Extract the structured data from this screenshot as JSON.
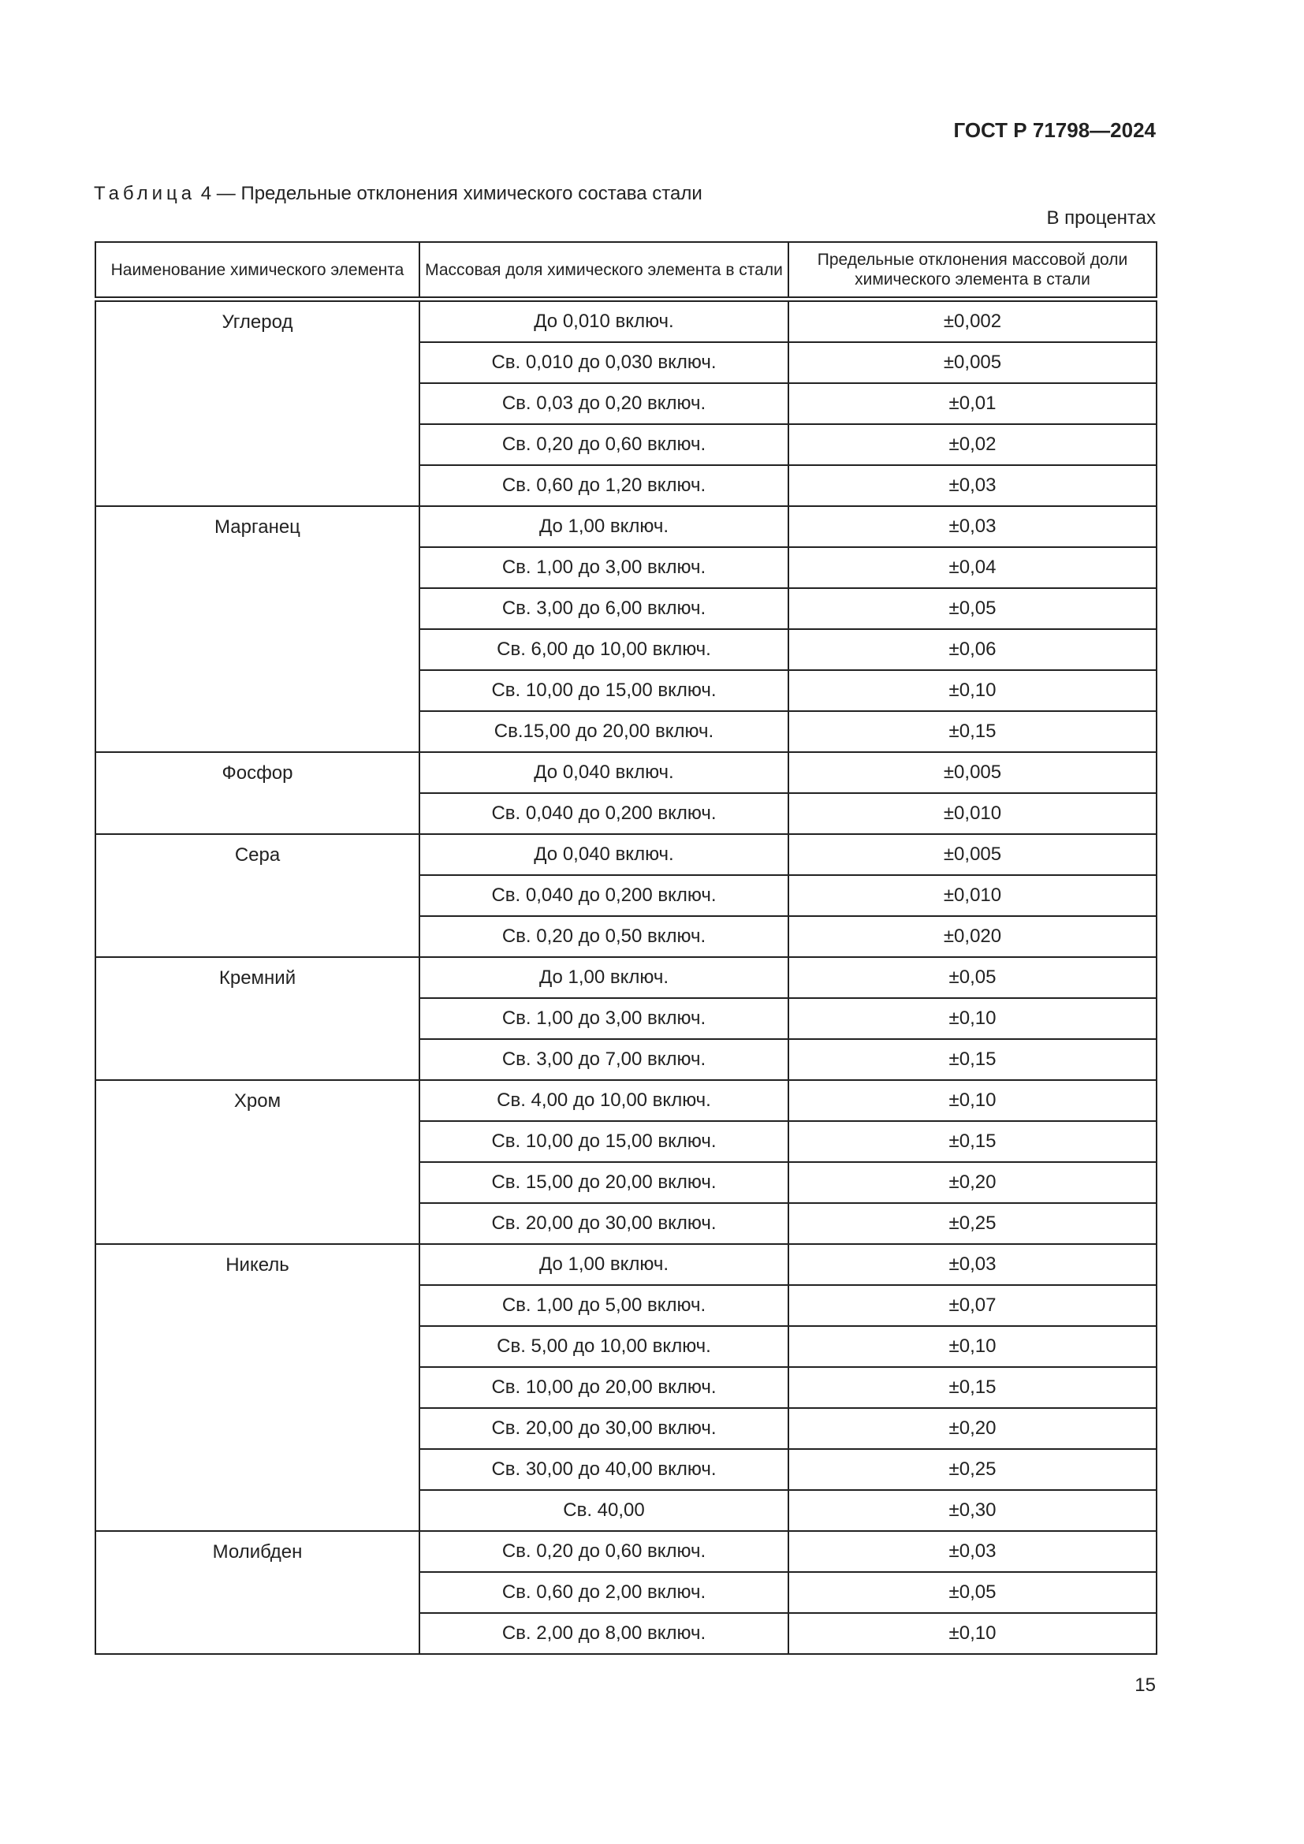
{
  "header": {
    "doc_id": "ГОСТ Р 71798—2024"
  },
  "caption": {
    "label": "Таблица",
    "text": " 4 — Предельные отклонения химического состава стали"
  },
  "units": "В процентах",
  "table": {
    "columns": [
      "Наименование химического элемента",
      "Массовая доля химического элемента в стали",
      "Предельные отклонения массовой доли химического элемента в стали"
    ],
    "groups": [
      {
        "element": "Углерод",
        "rows": [
          [
            "До 0,010 включ.",
            "±0,002"
          ],
          [
            "Св. 0,010 до 0,030 включ.",
            "±0,005"
          ],
          [
            "Св. 0,03 до 0,20 включ.",
            "±0,01"
          ],
          [
            "Св. 0,20 до 0,60 включ.",
            "±0,02"
          ],
          [
            "Св. 0,60 до 1,20 включ.",
            "±0,03"
          ]
        ]
      },
      {
        "element": "Марганец",
        "rows": [
          [
            "До 1,00 включ.",
            "±0,03"
          ],
          [
            "Св. 1,00 до 3,00 включ.",
            "±0,04"
          ],
          [
            "Св. 3,00 до 6,00 включ.",
            "±0,05"
          ],
          [
            "Св. 6,00 до 10,00 включ.",
            "±0,06"
          ],
          [
            "Св. 10,00 до 15,00 включ.",
            "±0,10"
          ],
          [
            "Св.15,00 до 20,00 включ.",
            "±0,15"
          ]
        ]
      },
      {
        "element": "Фосфор",
        "rows": [
          [
            "До 0,040 включ.",
            "±0,005"
          ],
          [
            "Св. 0,040 до 0,200 включ.",
            "±0,010"
          ]
        ]
      },
      {
        "element": "Сера",
        "rows": [
          [
            "До 0,040 включ.",
            "±0,005"
          ],
          [
            "Св. 0,040 до 0,200 включ.",
            "±0,010"
          ],
          [
            "Св. 0,20 до 0,50 включ.",
            "±0,020"
          ]
        ]
      },
      {
        "element": "Кремний",
        "rows": [
          [
            "До 1,00 включ.",
            "±0,05"
          ],
          [
            "Св. 1,00 до 3,00 включ.",
            "±0,10"
          ],
          [
            "Св. 3,00 до 7,00 включ.",
            "±0,15"
          ]
        ]
      },
      {
        "element": "Хром",
        "rows": [
          [
            "Св. 4,00 до 10,00 включ.",
            "±0,10"
          ],
          [
            "Св. 10,00 до 15,00 включ.",
            "±0,15"
          ],
          [
            "Св. 15,00 до 20,00 включ.",
            "±0,20"
          ],
          [
            "Св. 20,00 до 30,00 включ.",
            "±0,25"
          ]
        ]
      },
      {
        "element": "Никель",
        "rows": [
          [
            "До 1,00 включ.",
            "±0,03"
          ],
          [
            "Св. 1,00 до 5,00 включ.",
            "±0,07"
          ],
          [
            "Св. 5,00 до 10,00 включ.",
            "±0,10"
          ],
          [
            "Св. 10,00 до 20,00 включ.",
            "±0,15"
          ],
          [
            "Св. 20,00 до 30,00 включ.",
            "±0,20"
          ],
          [
            "Св. 30,00 до 40,00 включ.",
            "±0,25"
          ],
          [
            "Св. 40,00",
            "±0,30"
          ]
        ]
      },
      {
        "element": "Молибден",
        "rows": [
          [
            "Св. 0,20 до 0,60 включ.",
            "±0,03"
          ],
          [
            "Св. 0,60 до 2,00 включ.",
            "±0,05"
          ],
          [
            "Св. 2,00 до 8,00 включ.",
            "±0,10"
          ]
        ]
      }
    ]
  },
  "page_number": "15"
}
